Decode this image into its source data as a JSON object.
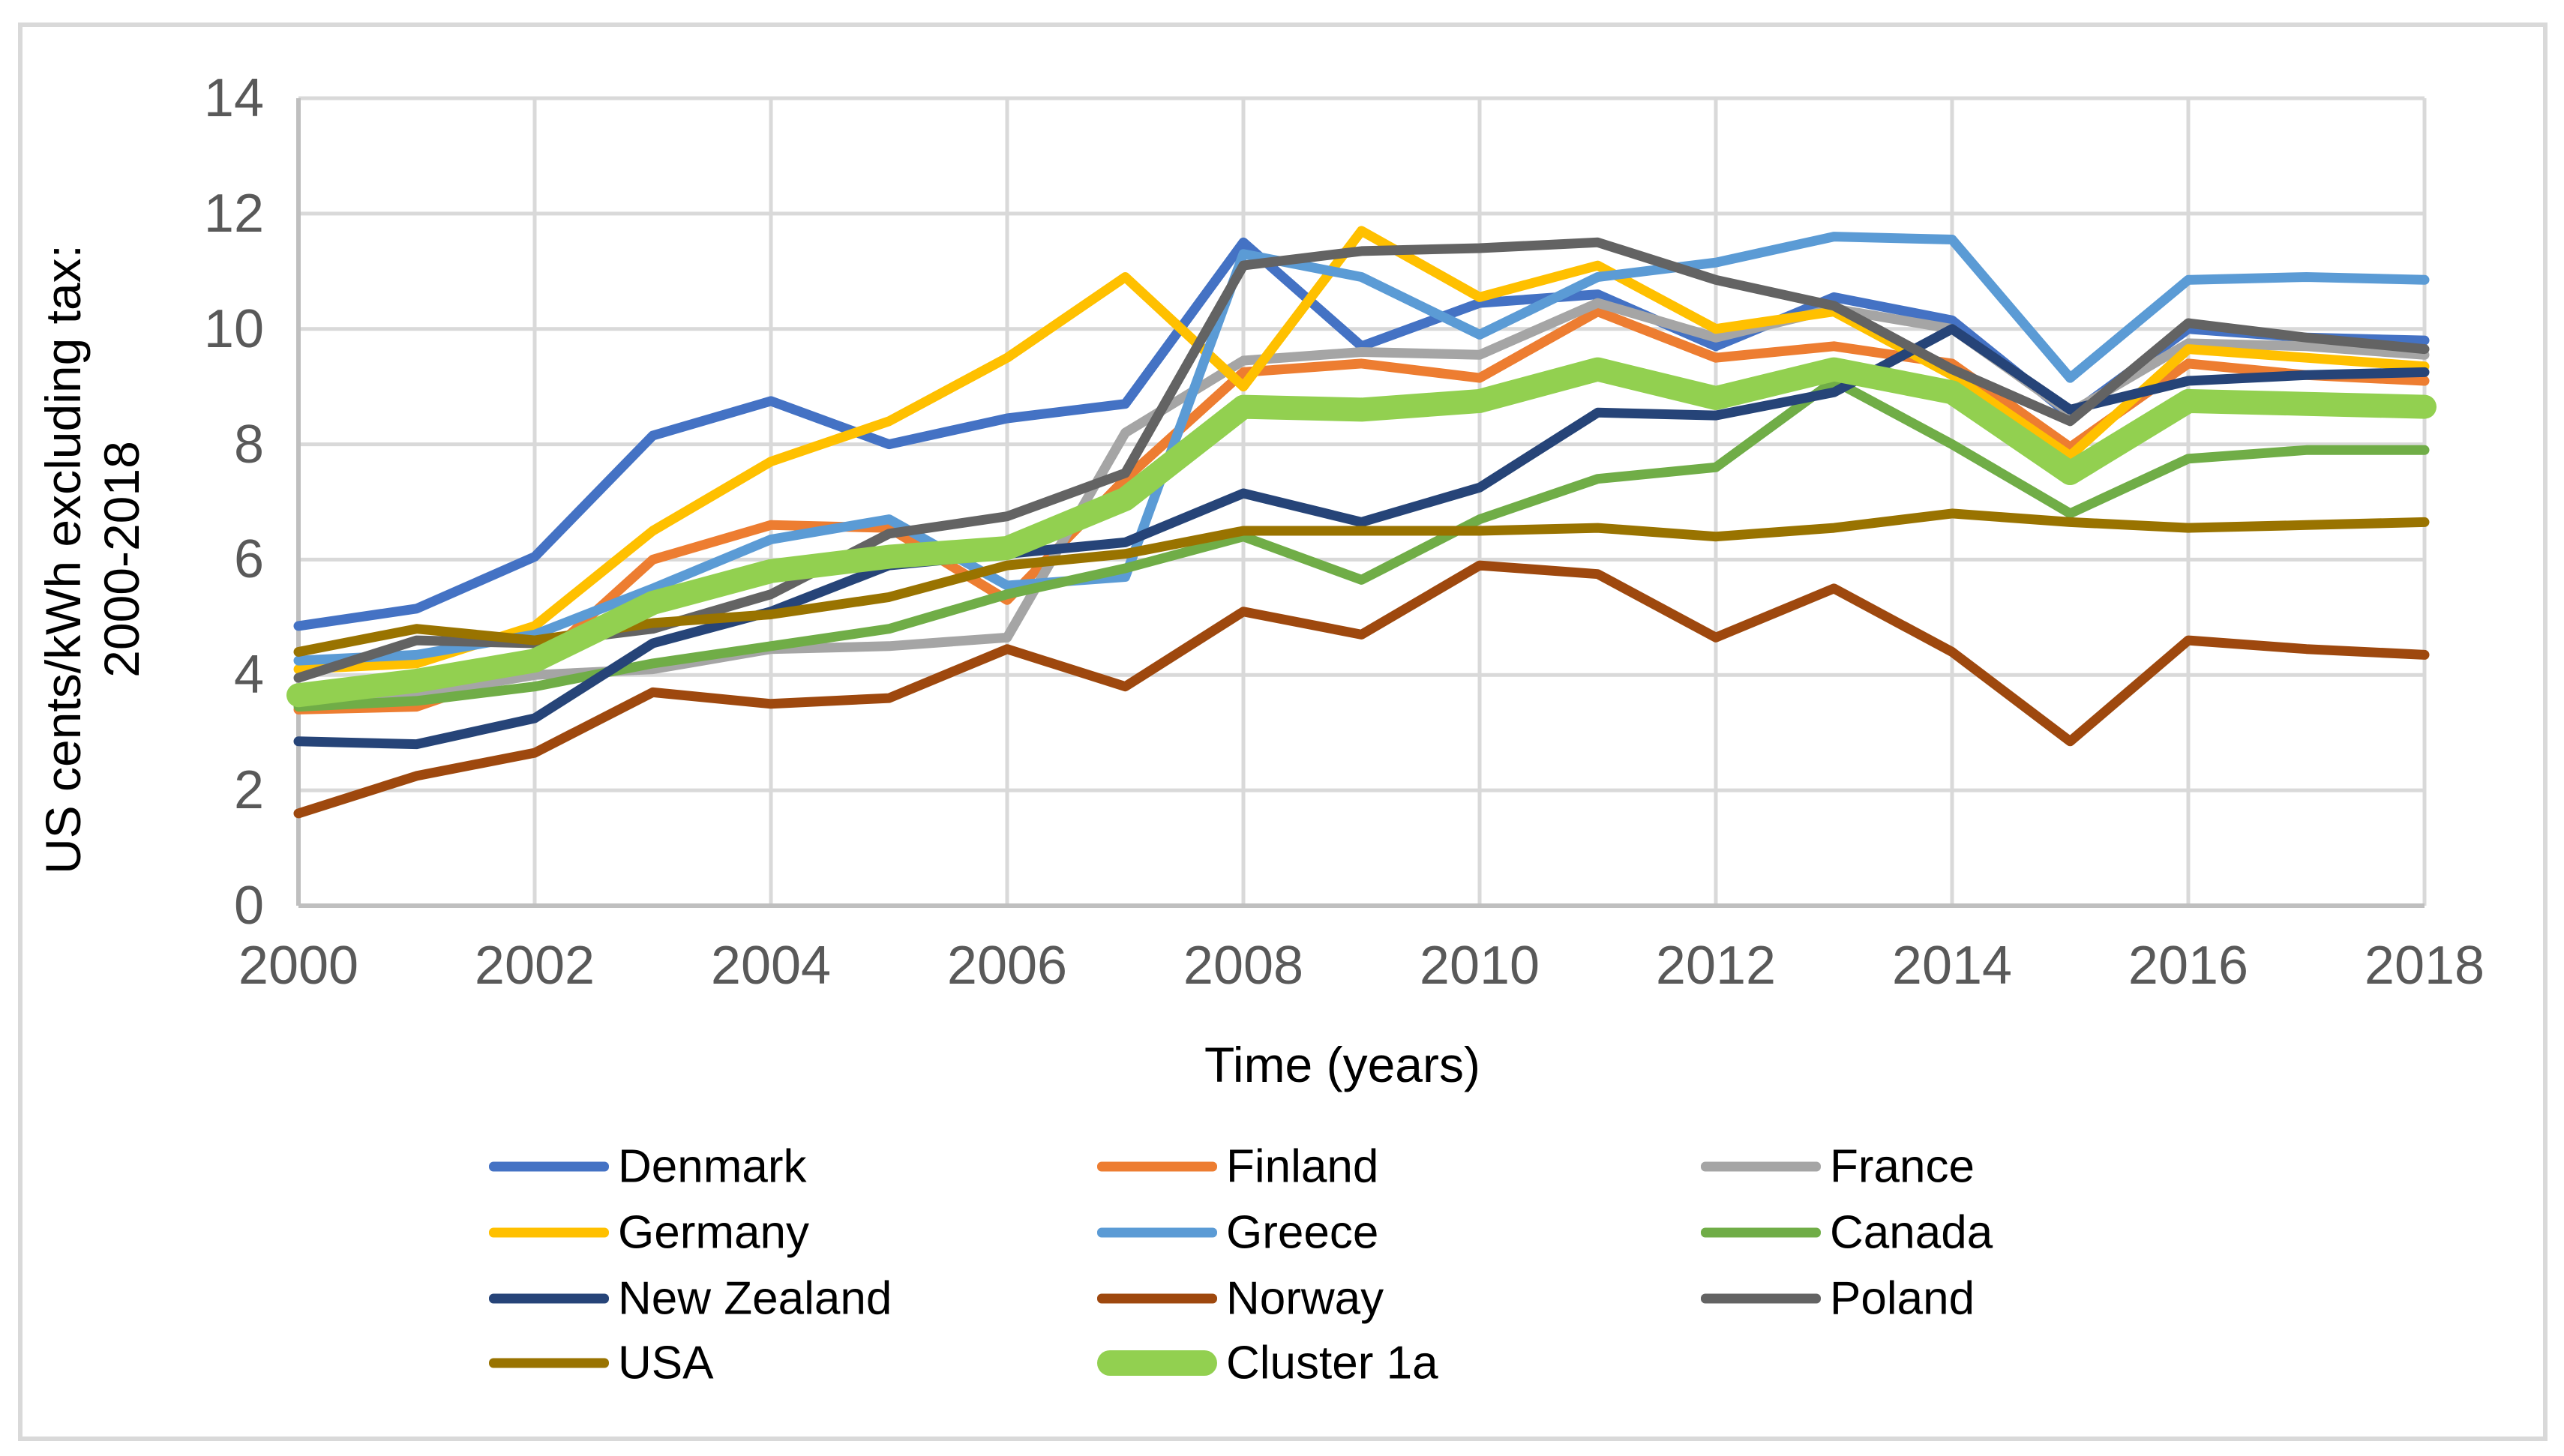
{
  "chart_data": {
    "type": "line",
    "title": "",
    "xlabel": "Time (years)",
    "ylabel_line1": "US cents/kWh  excluding tax:",
    "ylabel_line2": "2000-2018",
    "x": [
      2000,
      2001,
      2002,
      2003,
      2004,
      2005,
      2006,
      2007,
      2008,
      2009,
      2010,
      2011,
      2012,
      2013,
      2014,
      2015,
      2016,
      2017,
      2018
    ],
    "x_tick_labels": [
      "2000",
      "2002",
      "2004",
      "2006",
      "2008",
      "2010",
      "2012",
      "2014",
      "2016",
      "2018"
    ],
    "y_tick_labels": [
      "0",
      "2",
      "4",
      "6",
      "8",
      "10",
      "12",
      "14"
    ],
    "ylim": [
      0,
      14
    ],
    "xlim": [
      2000,
      2018
    ],
    "grid": true,
    "legend_position": "bottom",
    "colors": {
      "gridline": "#D9D9D9",
      "axis_line": "#BFBFBF",
      "tick_label": "#595959"
    },
    "series": [
      {
        "name": "Denmark",
        "color": "#4472C4",
        "thick": false,
        "values": [
          4.85,
          5.15,
          6.05,
          8.15,
          8.75,
          8.0,
          8.45,
          8.7,
          11.5,
          9.7,
          10.45,
          10.6,
          9.7,
          10.55,
          10.15,
          8.5,
          10.0,
          9.85,
          9.8
        ]
      },
      {
        "name": "Finland",
        "color": "#ED7D31",
        "thick": false,
        "values": [
          3.4,
          3.45,
          4.15,
          6.0,
          6.6,
          6.55,
          5.3,
          7.4,
          9.25,
          9.4,
          9.15,
          10.3,
          9.5,
          9.7,
          9.4,
          7.95,
          9.4,
          9.2,
          9.1
        ]
      },
      {
        "name": "France",
        "color": "#A5A5A5",
        "thick": false,
        "values": [
          3.5,
          3.65,
          4.0,
          4.1,
          4.45,
          4.5,
          4.65,
          8.2,
          9.45,
          9.6,
          9.55,
          10.45,
          9.85,
          10.35,
          10.0,
          8.55,
          9.75,
          9.7,
          9.55
        ]
      },
      {
        "name": "Germany",
        "color": "#FFC000",
        "thick": false,
        "values": [
          4.1,
          4.2,
          4.85,
          6.5,
          7.7,
          8.4,
          9.5,
          10.9,
          9.0,
          11.7,
          10.55,
          11.1,
          10.0,
          10.3,
          9.2,
          7.8,
          9.65,
          9.5,
          9.35
        ]
      },
      {
        "name": "Greece",
        "color": "#5B9BD5",
        "thick": false,
        "values": [
          4.25,
          4.35,
          4.7,
          5.5,
          6.35,
          6.7,
          5.55,
          5.7,
          11.3,
          10.9,
          9.9,
          10.9,
          11.15,
          11.6,
          11.55,
          9.15,
          10.85,
          10.9,
          10.85
        ]
      },
      {
        "name": "Canada",
        "color": "#70AD47",
        "thick": false,
        "values": [
          3.45,
          3.55,
          3.8,
          4.2,
          4.5,
          4.8,
          5.4,
          5.85,
          6.4,
          5.65,
          6.7,
          7.4,
          7.6,
          9.1,
          8.0,
          6.8,
          7.75,
          7.9,
          7.9
        ]
      },
      {
        "name": "New Zealand",
        "color": "#264478",
        "thick": false,
        "values": [
          2.85,
          2.8,
          3.25,
          4.55,
          5.1,
          5.9,
          6.1,
          6.3,
          7.15,
          6.65,
          7.25,
          8.55,
          8.5,
          8.9,
          10.0,
          8.6,
          9.1,
          9.2,
          9.25
        ]
      },
      {
        "name": "Norway",
        "color": "#9E480E",
        "thick": false,
        "values": [
          1.6,
          2.25,
          2.65,
          3.7,
          3.5,
          3.6,
          4.45,
          3.8,
          5.1,
          4.7,
          5.9,
          5.75,
          4.65,
          5.5,
          4.4,
          2.85,
          4.6,
          4.45,
          4.35
        ]
      },
      {
        "name": "Poland",
        "color": "#636363",
        "thick": false,
        "values": [
          3.95,
          4.6,
          4.55,
          4.8,
          5.4,
          6.45,
          6.75,
          7.5,
          11.1,
          11.35,
          11.4,
          11.5,
          10.85,
          10.4,
          9.3,
          8.4,
          10.1,
          9.85,
          9.65
        ]
      },
      {
        "name": "USA",
        "color": "#997300",
        "thick": false,
        "values": [
          4.4,
          4.8,
          4.6,
          4.9,
          5.05,
          5.35,
          5.9,
          6.1,
          6.5,
          6.5,
          6.5,
          6.55,
          6.4,
          6.55,
          6.8,
          6.65,
          6.55,
          6.6,
          6.65
        ]
      },
      {
        "name": "Cluster 1a",
        "color": "#92D050",
        "thick": true,
        "values": [
          3.65,
          3.9,
          4.25,
          5.25,
          5.8,
          6.05,
          6.2,
          7.05,
          8.65,
          8.6,
          8.75,
          9.3,
          8.8,
          9.3,
          8.9,
          7.5,
          8.75,
          8.7,
          8.65
        ]
      }
    ]
  }
}
